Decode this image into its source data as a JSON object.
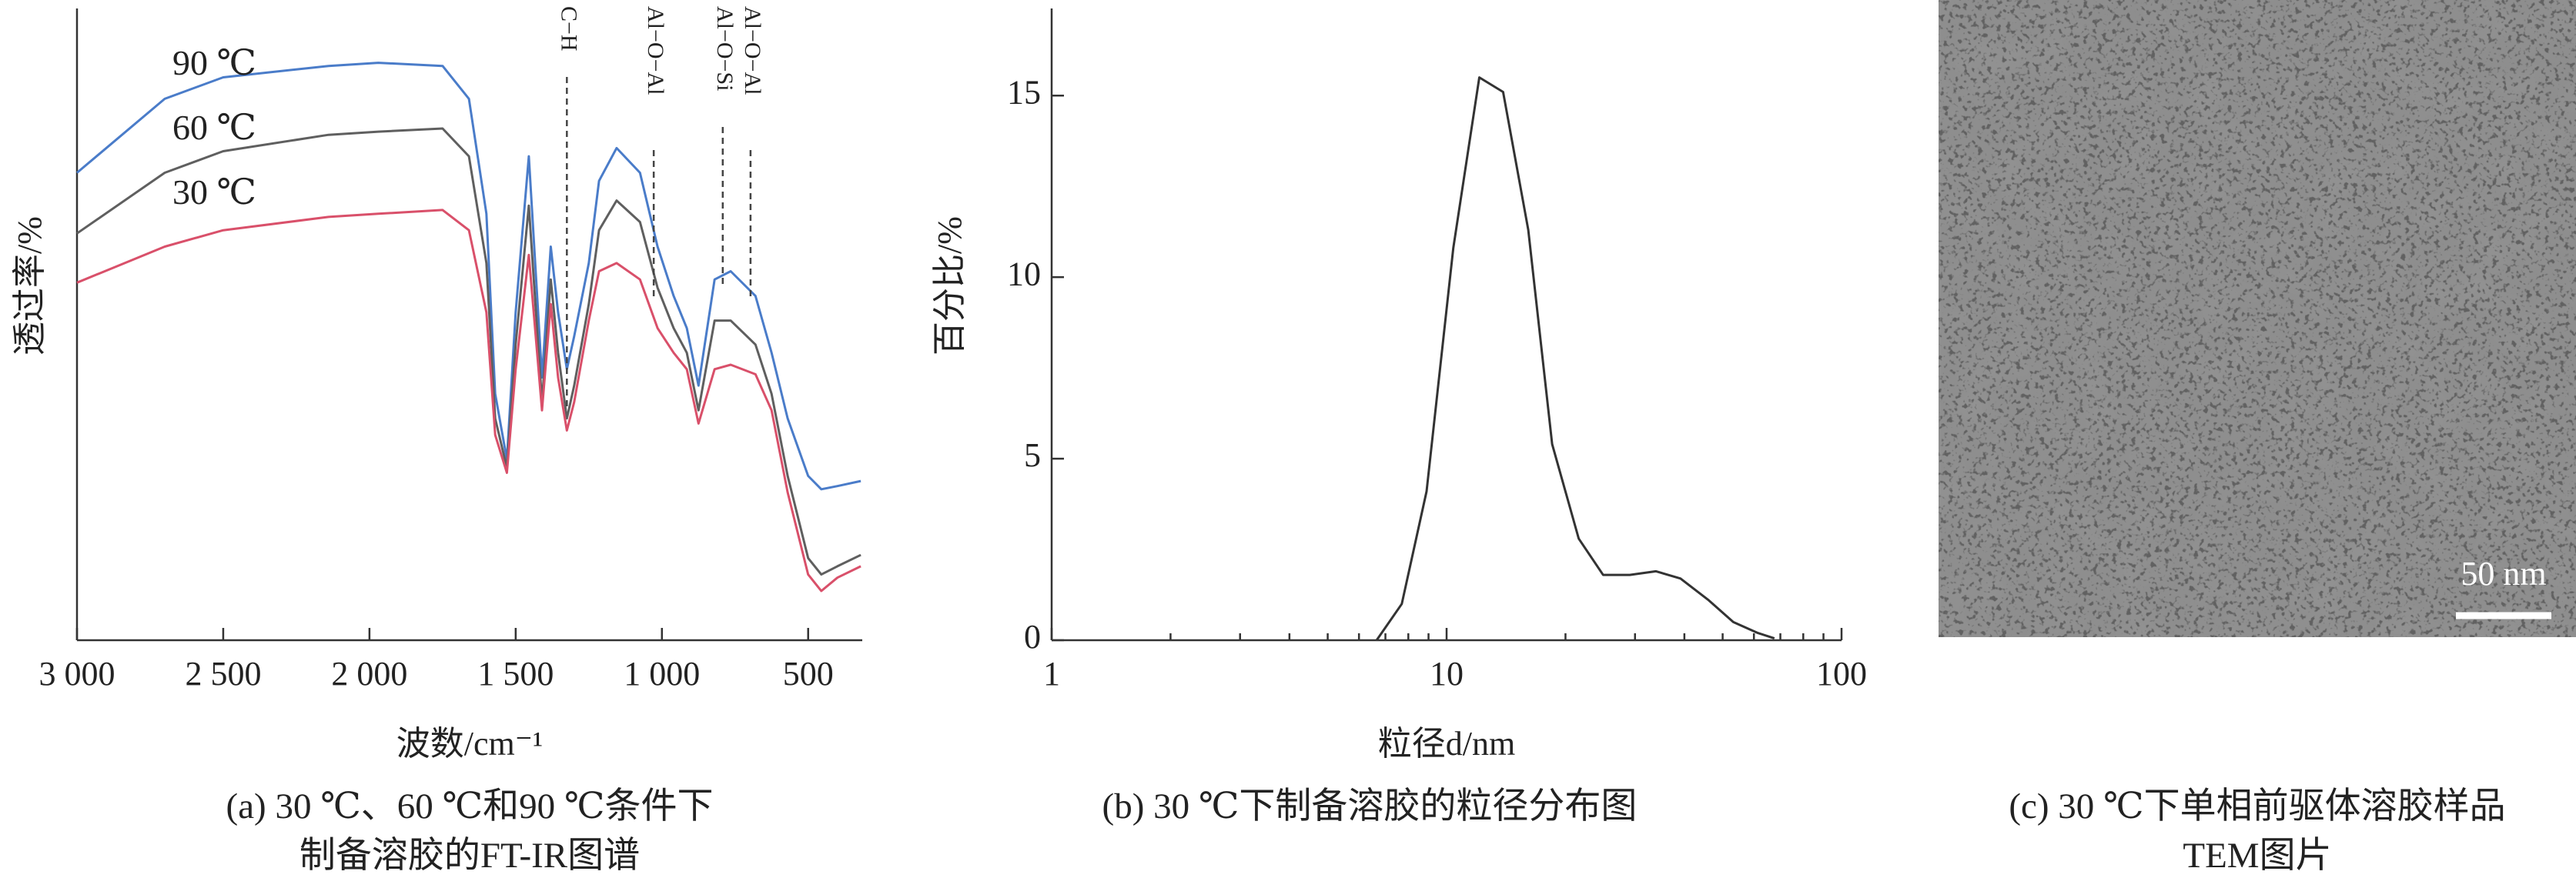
{
  "chart_data": [
    {
      "type": "line",
      "xlabel": "波数/cm⁻¹",
      "ylabel": "透过率/%",
      "caption": [
        "(a) 30 ℃、60 ℃和90 ℃条件下",
        "制备溶胶的FT-IR图谱"
      ],
      "xlim": [
        3000,
        315
      ],
      "ylim": [
        0,
        100
      ],
      "xticks": [
        {
          "value": 3000,
          "label": "3 000"
        },
        {
          "value": 2500,
          "label": "2 500"
        },
        {
          "value": 2000,
          "label": "2 000"
        },
        {
          "value": 1500,
          "label": "1 500"
        },
        {
          "value": 1000,
          "label": "1 000"
        },
        500
      ],
      "x": [
        3000,
        2700,
        2500,
        2140,
        1970,
        1750,
        1660,
        1600,
        1570,
        1530,
        1500,
        1455,
        1410,
        1380,
        1355,
        1325,
        1300,
        1250,
        1215,
        1155,
        1075,
        1015,
        960,
        915,
        875,
        820,
        765,
        680,
        625,
        570,
        500,
        455,
        400,
        320
      ],
      "series": [
        {
          "name": "90 ℃",
          "color": "#4a7cc9",
          "values": [
            74.0,
            85.7,
            89.1,
            90.9,
            91.4,
            90.9,
            85.7,
            67.5,
            39.0,
            28.6,
            51.9,
            76.6,
            41.6,
            62.3,
            51.9,
            42.9,
            48.1,
            59.7,
            72.7,
            77.9,
            74.0,
            62.3,
            54.5,
            49.4,
            40.3,
            57.1,
            58.4,
            54.5,
            45.5,
            35.1,
            26.0,
            23.9,
            24.4,
            25.2
          ]
        },
        {
          "name": "60 ℃",
          "color": "#5f5f5f",
          "values": [
            64.4,
            74.0,
            77.4,
            80.0,
            80.5,
            81.0,
            76.6,
            59.7,
            35.1,
            27.3,
            46.8,
            68.8,
            37.7,
            57.1,
            45.5,
            35.1,
            40.3,
            53.2,
            64.9,
            69.6,
            66.2,
            55.8,
            49.4,
            45.5,
            36.4,
            50.6,
            50.6,
            46.8,
            39.0,
            26.0,
            13.0,
            10.4,
            11.7,
            13.5
          ]
        },
        {
          "name": "30 ℃",
          "color": "#d9506a",
          "values": [
            56.6,
            62.3,
            64.9,
            67.0,
            67.5,
            68.1,
            64.9,
            51.9,
            32.5,
            26.5,
            42.9,
            61.0,
            36.4,
            53.2,
            41.6,
            33.2,
            37.7,
            50.6,
            58.4,
            59.7,
            57.1,
            49.4,
            45.5,
            42.9,
            34.3,
            42.9,
            43.6,
            42.1,
            36.4,
            23.4,
            10.4,
            7.8,
            9.9,
            11.7
          ]
        }
      ],
      "annotations": [
        {
          "x": 1325,
          "text": "C−H"
        },
        {
          "x": 1028,
          "text": "Al−O−Al"
        },
        {
          "x": 792,
          "text": "Al−O−Si"
        },
        {
          "x": 697,
          "text": "Al−O−Al"
        }
      ]
    },
    {
      "type": "line",
      "xlabel": "粒径d/nm",
      "ylabel": "百分比/%",
      "caption": [
        "(b)  30 ℃下制备溶胶的粒径分布图"
      ],
      "xscale": "log",
      "xlim": [
        1,
        100
      ],
      "ylim": [
        0,
        17.4
      ],
      "xticks": [
        1,
        10,
        100
      ],
      "xminorticks": [
        2,
        3,
        4,
        5,
        6,
        7,
        8,
        9,
        20,
        30,
        40,
        50,
        60,
        70,
        80,
        90
      ],
      "yticks": [
        0,
        5,
        10,
        15
      ],
      "x": [
        6.65,
        7.7,
        8.9,
        10.4,
        12.1,
        13.9,
        16.1,
        18.5,
        21.6,
        24.9,
        29.1,
        33.9,
        39.1,
        46.1,
        53.2,
        61.4,
        67.6
      ],
      "values": [
        0,
        1.0,
        4.1,
        10.8,
        15.5,
        15.1,
        11.3,
        5.4,
        2.8,
        1.8,
        1.8,
        1.9,
        1.7,
        1.1,
        0.5,
        0.2,
        0.05
      ],
      "color": "#333333"
    },
    {
      "type": "image",
      "scale_label": "50 nm",
      "caption": [
        "(c) 30 ℃下单相前驱体溶胶样品",
        "TEM图片"
      ]
    }
  ]
}
